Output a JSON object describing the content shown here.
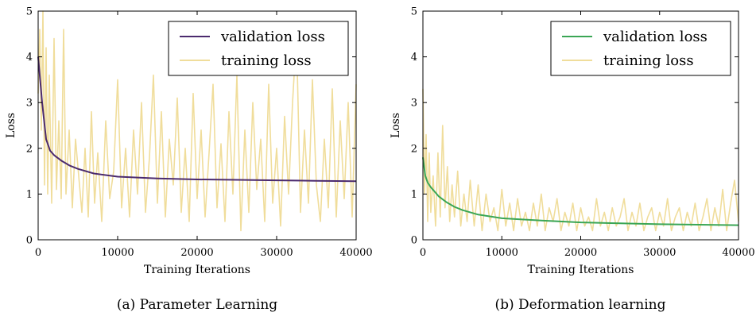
{
  "chart_data": [
    {
      "type": "line",
      "caption": "(a) Parameter Learning",
      "xlabel": "Training Iterations",
      "ylabel": "Loss",
      "xlim": [
        0,
        40000
      ],
      "ylim": [
        0,
        5
      ],
      "xticks": [
        "0",
        "10000",
        "20000",
        "30000",
        "40000"
      ],
      "yticks": [
        "0",
        "1",
        "2",
        "3",
        "4",
        "5"
      ],
      "grid": false,
      "legend_position": "top-right",
      "series": [
        {
          "name": "validation loss",
          "color": "#4b2a6e",
          "x": [
            0,
            500,
            1000,
            1500,
            2000,
            3000,
            4000,
            5000,
            7000,
            10000,
            15000,
            20000,
            25000,
            30000,
            35000,
            40000
          ],
          "y": [
            4.0,
            3.0,
            2.2,
            1.95,
            1.85,
            1.72,
            1.62,
            1.55,
            1.45,
            1.38,
            1.34,
            1.32,
            1.31,
            1.3,
            1.29,
            1.28
          ]
        },
        {
          "name": "training loss",
          "color": "#f0dd9b",
          "x": [
            0,
            200,
            400,
            600,
            800,
            1000,
            1200,
            1400,
            1700,
            2000,
            2300,
            2600,
            2900,
            3200,
            3500,
            3900,
            4300,
            4700,
            5100,
            5500,
            5900,
            6300,
            6700,
            7100,
            7500,
            8000,
            8500,
            9000,
            9500,
            10000,
            10500,
            11000,
            11500,
            12000,
            12500,
            13000,
            13500,
            14000,
            14500,
            15000,
            15500,
            16000,
            16500,
            17000,
            17500,
            18000,
            18500,
            19000,
            19500,
            20000,
            20500,
            21000,
            21500,
            22000,
            22500,
            23000,
            23500,
            24000,
            24500,
            25000,
            25500,
            26000,
            26500,
            27000,
            27500,
            28000,
            28500,
            29000,
            29500,
            30000,
            30500,
            31000,
            31500,
            32000,
            32500,
            33000,
            33500,
            34000,
            34500,
            35000,
            35500,
            36000,
            36500,
            37000,
            37500,
            38000,
            38500,
            39000,
            39500,
            40000
          ],
          "y": [
            3.2,
            4.6,
            2.4,
            5.0,
            1.2,
            4.2,
            1.0,
            3.6,
            0.8,
            4.4,
            1.1,
            2.6,
            0.9,
            4.6,
            1.0,
            2.4,
            0.7,
            2.2,
            1.4,
            0.6,
            2.0,
            0.5,
            2.8,
            0.8,
            1.9,
            0.4,
            2.6,
            0.9,
            1.5,
            3.5,
            0.7,
            2.0,
            0.5,
            2.4,
            1.0,
            3.0,
            0.6,
            1.8,
            3.6,
            0.8,
            2.8,
            0.5,
            2.2,
            1.2,
            3.1,
            0.6,
            2.0,
            0.4,
            3.2,
            0.9,
            2.4,
            0.5,
            1.9,
            3.4,
            0.7,
            2.1,
            0.4,
            2.8,
            1.0,
            3.6,
            0.2,
            2.4,
            0.6,
            3.0,
            1.1,
            2.2,
            0.4,
            3.4,
            0.8,
            2.0,
            0.3,
            2.7,
            1.0,
            3.0,
            4.5,
            0.6,
            2.4,
            0.8,
            3.5,
            1.2,
            0.4,
            2.2,
            0.7,
            3.3,
            0.5,
            2.6,
            0.9,
            3.0,
            0.5,
            3.4
          ]
        }
      ]
    },
    {
      "type": "line",
      "caption": "(b) Deformation learning",
      "xlabel": "Training Iterations",
      "ylabel": "Loss",
      "xlim": [
        0,
        40000
      ],
      "ylim": [
        0,
        5
      ],
      "xticks": [
        "0",
        "10000",
        "20000",
        "30000",
        "40000"
      ],
      "yticks": [
        "0",
        "1",
        "2",
        "3",
        "4",
        "5"
      ],
      "grid": false,
      "legend_position": "top-right",
      "series": [
        {
          "name": "validation loss",
          "color": "#3aa655",
          "x": [
            0,
            300,
            600,
            1000,
            1500,
            2000,
            3000,
            4000,
            5000,
            7000,
            10000,
            15000,
            20000,
            25000,
            30000,
            35000,
            40000
          ],
          "y": [
            1.8,
            1.4,
            1.25,
            1.15,
            1.05,
            0.95,
            0.82,
            0.72,
            0.65,
            0.55,
            0.47,
            0.42,
            0.38,
            0.36,
            0.34,
            0.33,
            0.32
          ]
        },
        {
          "name": "training loss",
          "color": "#f0dd9b",
          "x": [
            0,
            200,
            400,
            600,
            800,
            1000,
            1300,
            1600,
            1900,
            2200,
            2500,
            2800,
            3100,
            3400,
            3700,
            4000,
            4400,
            4800,
            5200,
            5600,
            6000,
            6500,
            7000,
            7500,
            8000,
            8500,
            9000,
            9500,
            10000,
            10500,
            11000,
            11500,
            12000,
            12500,
            13000,
            13500,
            14000,
            14500,
            15000,
            15500,
            16000,
            16500,
            17000,
            17500,
            18000,
            18500,
            19000,
            19500,
            20000,
            20500,
            21000,
            21500,
            22000,
            22500,
            23000,
            23500,
            24000,
            24500,
            25000,
            25500,
            26000,
            26500,
            27000,
            27500,
            28000,
            28500,
            29000,
            29500,
            30000,
            30500,
            31000,
            31500,
            32000,
            32500,
            33000,
            33500,
            34000,
            34500,
            35000,
            35500,
            36000,
            36500,
            37000,
            37500,
            38000,
            38500,
            39000,
            39500,
            40000
          ],
          "y": [
            3.3,
            1.0,
            2.3,
            0.4,
            1.9,
            0.6,
            1.4,
            0.3,
            1.9,
            0.5,
            2.5,
            0.7,
            1.6,
            0.4,
            1.2,
            0.5,
            1.5,
            0.3,
            1.0,
            0.4,
            1.3,
            0.3,
            1.2,
            0.2,
            1.0,
            0.4,
            0.7,
            0.2,
            1.1,
            0.3,
            0.8,
            0.2,
            0.9,
            0.3,
            0.6,
            0.2,
            0.8,
            0.3,
            1.0,
            0.2,
            0.7,
            0.4,
            0.9,
            0.2,
            0.6,
            0.3,
            0.8,
            0.2,
            0.7,
            0.3,
            0.5,
            0.2,
            0.9,
            0.3,
            0.6,
            0.2,
            0.7,
            0.3,
            0.5,
            0.9,
            0.2,
            0.6,
            0.3,
            0.8,
            0.2,
            0.5,
            0.7,
            0.2,
            0.6,
            0.3,
            0.9,
            0.2,
            0.5,
            0.7,
            0.2,
            0.6,
            0.3,
            0.8,
            0.2,
            0.5,
            0.9,
            0.2,
            0.7,
            0.3,
            1.1,
            0.2,
            0.8,
            1.3,
            0.4
          ]
        }
      ]
    }
  ]
}
